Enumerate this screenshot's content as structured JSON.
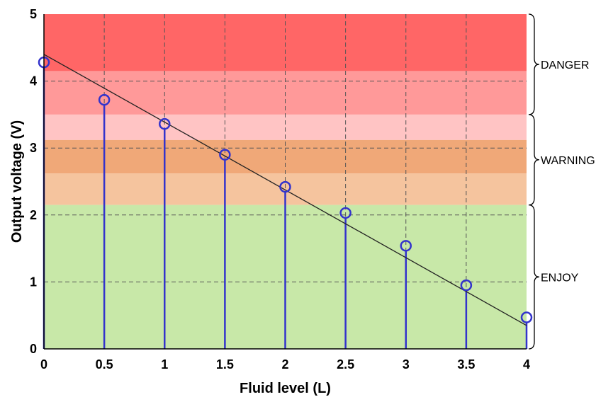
{
  "chart_data": {
    "type": "scatter",
    "title": "",
    "xlabel": "Fluid level (L)",
    "ylabel": "Output voltage (V)",
    "xlim": [
      0,
      4
    ],
    "ylim": [
      0,
      5
    ],
    "xticks": [
      "0",
      "0.5",
      "1",
      "1.5",
      "2",
      "2.5",
      "3",
      "3.5",
      "4"
    ],
    "yticks": [
      "0",
      "1",
      "2",
      "3",
      "4",
      "5"
    ],
    "grid": true,
    "series": [
      {
        "marker": "circle",
        "stems": true,
        "color": "#3333cc",
        "x": [
          0,
          0.5,
          1,
          1.5,
          2,
          2.5,
          3,
          3.5,
          4
        ],
        "y": [
          4.28,
          3.72,
          3.36,
          2.9,
          2.42,
          2.03,
          1.54,
          0.95,
          0.47
        ]
      }
    ],
    "fit_line": {
      "color": "#222222",
      "x": [
        0,
        4
      ],
      "y": [
        4.4,
        0.35
      ]
    },
    "bands": [
      {
        "y0": 4.15,
        "y1": 5.0,
        "color": "#ff6666"
      },
      {
        "y0": 3.5,
        "y1": 4.15,
        "color": "#ff9999"
      },
      {
        "y0": 3.12,
        "y1": 3.5,
        "color": "#ffc4c4"
      },
      {
        "y0": 2.62,
        "y1": 3.12,
        "color": "#f0a878"
      },
      {
        "y0": 2.15,
        "y1": 2.62,
        "color": "#f5c49e"
      },
      {
        "y0": 0,
        "y1": 2.15,
        "color": "#c8e8a8"
      }
    ],
    "zones": [
      {
        "label": "DANGER",
        "y0": 3.5,
        "y1": 5.0
      },
      {
        "label": "WARNING",
        "y0": 2.15,
        "y1": 3.5
      },
      {
        "label": "ENJOY",
        "y0": 0,
        "y1": 2.15
      }
    ]
  }
}
